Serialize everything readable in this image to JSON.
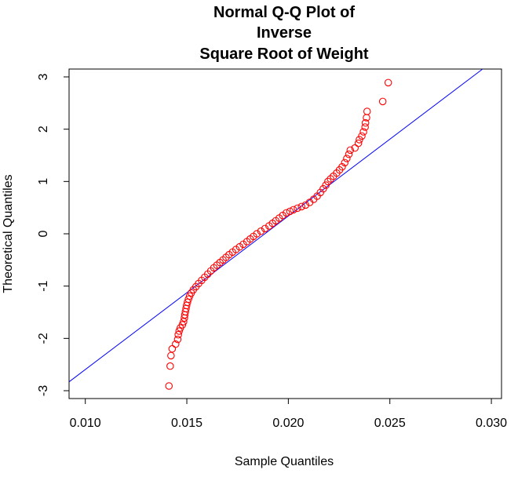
{
  "chart_data": {
    "type": "scatter",
    "title_lines": [
      "Normal Q-Q Plot of",
      "Inverse",
      "Square Root of Weight"
    ],
    "xlabel": "Sample Quantiles",
    "ylabel": "Theoretical Quantiles",
    "xlim": [
      0.0092,
      0.0305
    ],
    "ylim": [
      -3.15,
      3.15
    ],
    "x_ticks": [
      0.01,
      0.015,
      0.02,
      0.025,
      0.03
    ],
    "x_tick_labels": [
      "0.010",
      "0.015",
      "0.020",
      "0.025",
      "0.030"
    ],
    "y_ticks": [
      -3,
      -2,
      -1,
      0,
      1,
      2,
      3
    ],
    "y_tick_labels": [
      "-3",
      "-2",
      "-1",
      "0",
      "1",
      "2",
      "3"
    ],
    "grid": false,
    "reference_line": {
      "color": "#0000ff",
      "points": [
        [
          0.0092,
          -2.83
        ],
        [
          0.0295,
          3.13
        ]
      ]
    },
    "series": [
      {
        "marker": "open-circle",
        "color": "#ff0000",
        "points": [
          [
            0.01412,
            -2.91
          ],
          [
            0.01418,
            -2.53
          ],
          [
            0.01422,
            -2.33
          ],
          [
            0.01428,
            -2.2
          ],
          [
            0.01445,
            -2.11
          ],
          [
            0.01455,
            -2.02
          ],
          [
            0.01458,
            -1.93
          ],
          [
            0.01462,
            -1.86
          ],
          [
            0.01468,
            -1.8
          ],
          [
            0.01478,
            -1.74
          ],
          [
            0.01484,
            -1.68
          ],
          [
            0.01488,
            -1.61
          ],
          [
            0.0149,
            -1.55
          ],
          [
            0.01493,
            -1.49
          ],
          [
            0.01496,
            -1.43
          ],
          [
            0.01499,
            -1.37
          ],
          [
            0.01503,
            -1.31
          ],
          [
            0.01508,
            -1.25
          ],
          [
            0.01514,
            -1.19
          ],
          [
            0.01522,
            -1.13
          ],
          [
            0.01532,
            -1.07
          ],
          [
            0.01545,
            -1.01
          ],
          [
            0.01558,
            -0.95
          ],
          [
            0.01573,
            -0.89
          ],
          [
            0.01588,
            -0.83
          ],
          [
            0.01603,
            -0.77
          ],
          [
            0.01618,
            -0.71
          ],
          [
            0.01633,
            -0.65
          ],
          [
            0.01648,
            -0.6
          ],
          [
            0.01663,
            -0.55
          ],
          [
            0.01678,
            -0.5
          ],
          [
            0.01693,
            -0.45
          ],
          [
            0.01708,
            -0.4
          ],
          [
            0.01725,
            -0.35
          ],
          [
            0.01742,
            -0.3
          ],
          [
            0.0176,
            -0.25
          ],
          [
            0.01778,
            -0.2
          ],
          [
            0.01796,
            -0.15
          ],
          [
            0.01812,
            -0.1
          ],
          [
            0.01828,
            -0.05
          ],
          [
            0.01845,
            0.0
          ],
          [
            0.01865,
            0.05
          ],
          [
            0.01885,
            0.1
          ],
          [
            0.01905,
            0.15
          ],
          [
            0.01922,
            0.2
          ],
          [
            0.01938,
            0.25
          ],
          [
            0.01955,
            0.3
          ],
          [
            0.01972,
            0.35
          ],
          [
            0.0199,
            0.4
          ],
          [
            0.02008,
            0.43
          ],
          [
            0.02025,
            0.46
          ],
          [
            0.02045,
            0.49
          ],
          [
            0.02065,
            0.52
          ],
          [
            0.02085,
            0.55
          ],
          [
            0.02105,
            0.6
          ],
          [
            0.02125,
            0.66
          ],
          [
            0.02142,
            0.72
          ],
          [
            0.02158,
            0.79
          ],
          [
            0.02172,
            0.86
          ],
          [
            0.02185,
            0.93
          ],
          [
            0.02195,
            1.0
          ],
          [
            0.02208,
            1.05
          ],
          [
            0.02222,
            1.1
          ],
          [
            0.02238,
            1.16
          ],
          [
            0.02252,
            1.22
          ],
          [
            0.02265,
            1.28
          ],
          [
            0.02278,
            1.36
          ],
          [
            0.02288,
            1.44
          ],
          [
            0.02298,
            1.52
          ],
          [
            0.02305,
            1.6
          ],
          [
            0.02328,
            1.64
          ],
          [
            0.02345,
            1.73
          ],
          [
            0.0235,
            1.8
          ],
          [
            0.02362,
            1.87
          ],
          [
            0.0237,
            1.95
          ],
          [
            0.02378,
            2.04
          ],
          [
            0.0238,
            2.12
          ],
          [
            0.02385,
            2.22
          ],
          [
            0.02388,
            2.34
          ],
          [
            0.02465,
            2.53
          ],
          [
            0.02492,
            2.89
          ]
        ]
      }
    ]
  }
}
